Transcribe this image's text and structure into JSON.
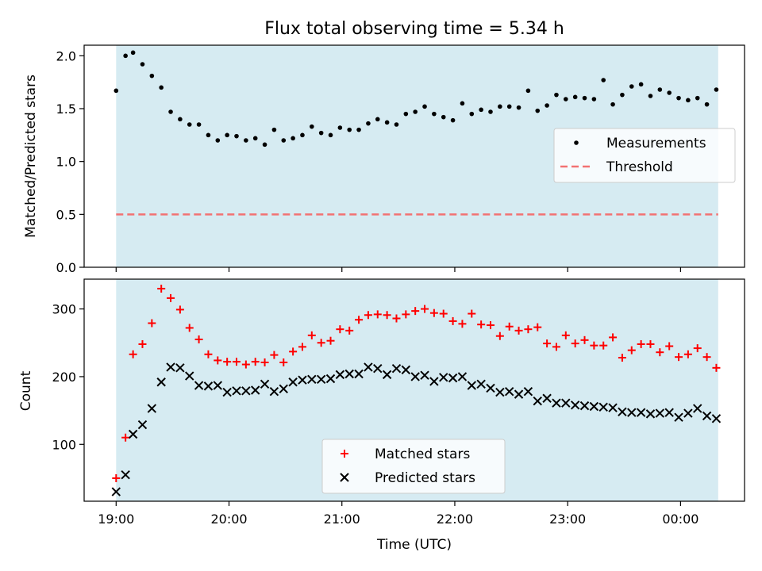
{
  "chart_data": [
    {
      "type": "scatter",
      "title": "Flux total observing time = 5.34 h",
      "ylabel": "Matched/Predicted stars",
      "xlabel": "",
      "xlim": [
        "18:43",
        "00:34"
      ],
      "ylim": [
        0,
        2.1
      ],
      "xticks": [
        "19:00",
        "20:00",
        "21:00",
        "22:00",
        "23:00",
        "00:00"
      ],
      "yticks": [
        "0.0",
        "0.5",
        "1.0",
        "1.5",
        "2.0"
      ],
      "shaded_span": [
        "19:00",
        "00:20"
      ],
      "shade_color": "#add8e6",
      "legend_position": "center-right",
      "series": [
        {
          "name": "Measurements",
          "marker": "dot",
          "color": "#000000",
          "x": [
            "19:00",
            "19:05",
            "19:09",
            "19:14",
            "19:19",
            "19:24",
            "19:29",
            "19:34",
            "19:39",
            "19:44",
            "19:49",
            "19:54",
            "19:59",
            "20:04",
            "20:09",
            "20:14",
            "20:19",
            "20:24",
            "20:29",
            "20:34",
            "20:39",
            "20:44",
            "20:49",
            "20:54",
            "20:59",
            "21:04",
            "21:09",
            "21:14",
            "21:19",
            "21:24",
            "21:29",
            "21:34",
            "21:39",
            "21:44",
            "21:49",
            "21:54",
            "21:59",
            "22:04",
            "22:09",
            "22:14",
            "22:19",
            "22:24",
            "22:29",
            "22:34",
            "22:39",
            "22:44",
            "22:49",
            "22:54",
            "22:59",
            "23:04",
            "23:09",
            "23:14",
            "23:19",
            "23:24",
            "23:29",
            "23:34",
            "23:39",
            "23:44",
            "23:49",
            "23:54",
            "23:59",
            "00:04",
            "00:09",
            "00:14",
            "00:19"
          ],
          "y": [
            1.67,
            2.0,
            2.03,
            1.92,
            1.81,
            1.7,
            1.47,
            1.4,
            1.35,
            1.35,
            1.25,
            1.2,
            1.25,
            1.24,
            1.2,
            1.22,
            1.16,
            1.3,
            1.2,
            1.22,
            1.25,
            1.33,
            1.27,
            1.25,
            1.32,
            1.3,
            1.3,
            1.36,
            1.4,
            1.37,
            1.35,
            1.45,
            1.47,
            1.52,
            1.45,
            1.42,
            1.39,
            1.55,
            1.45,
            1.49,
            1.47,
            1.52,
            1.52,
            1.51,
            1.67,
            1.48,
            1.53,
            1.63,
            1.59,
            1.61,
            1.6,
            1.59,
            1.77,
            1.54,
            1.63,
            1.71,
            1.73,
            1.62,
            1.68,
            1.65,
            1.6,
            1.58,
            1.6,
            1.54,
            1.68
          ]
        },
        {
          "name": "Threshold",
          "marker": "dashed-line",
          "color": "#f27272",
          "value": 0.5
        }
      ]
    },
    {
      "type": "scatter",
      "title": "",
      "ylabel": "Count",
      "xlabel": "Time (UTC)",
      "xlim": [
        "18:43",
        "00:34"
      ],
      "ylim": [
        16,
        344
      ],
      "xticks": [
        "19:00",
        "20:00",
        "21:00",
        "22:00",
        "23:00",
        "00:00"
      ],
      "yticks": [
        "100",
        "200",
        "300"
      ],
      "shaded_span": [
        "19:00",
        "00:20"
      ],
      "shade_color": "#add8e6",
      "legend_position": "lower-center",
      "series": [
        {
          "name": "Matched stars",
          "marker": "plus",
          "color": "#ff0000",
          "x": [
            "19:00",
            "19:05",
            "19:09",
            "19:14",
            "19:19",
            "19:24",
            "19:29",
            "19:34",
            "19:39",
            "19:44",
            "19:49",
            "19:54",
            "19:59",
            "20:04",
            "20:09",
            "20:14",
            "20:19",
            "20:24",
            "20:29",
            "20:34",
            "20:39",
            "20:44",
            "20:49",
            "20:54",
            "20:59",
            "21:04",
            "21:09",
            "21:14",
            "21:19",
            "21:24",
            "21:29",
            "21:34",
            "21:39",
            "21:44",
            "21:49",
            "21:54",
            "21:59",
            "22:04",
            "22:09",
            "22:14",
            "22:19",
            "22:24",
            "22:29",
            "22:34",
            "22:39",
            "22:44",
            "22:49",
            "22:54",
            "22:59",
            "23:04",
            "23:09",
            "23:14",
            "23:19",
            "23:24",
            "23:29",
            "23:34",
            "23:39",
            "23:44",
            "23:49",
            "23:54",
            "23:59",
            "00:04",
            "00:09",
            "00:14",
            "00:19"
          ],
          "y": [
            50,
            110,
            233,
            248,
            279,
            330,
            316,
            299,
            272,
            255,
            233,
            224,
            222,
            222,
            218,
            222,
            221,
            232,
            221,
            237,
            244,
            261,
            250,
            253,
            270,
            268,
            284,
            291,
            292,
            291,
            286,
            292,
            297,
            300,
            294,
            293,
            282,
            278,
            293,
            277,
            276,
            260,
            274,
            268,
            270,
            273,
            249,
            244,
            261,
            249,
            254,
            246,
            246,
            258,
            228,
            239,
            248,
            248,
            236,
            245,
            229,
            233,
            242,
            229,
            213
          ]
        },
        {
          "name": "Predicted stars",
          "marker": "x",
          "color": "#000000",
          "x": [
            "19:00",
            "19:05",
            "19:09",
            "19:14",
            "19:19",
            "19:24",
            "19:29",
            "19:34",
            "19:39",
            "19:44",
            "19:49",
            "19:54",
            "19:59",
            "20:04",
            "20:09",
            "20:14",
            "20:19",
            "20:24",
            "20:29",
            "20:34",
            "20:39",
            "20:44",
            "20:49",
            "20:54",
            "20:59",
            "21:04",
            "21:09",
            "21:14",
            "21:19",
            "21:24",
            "21:29",
            "21:34",
            "21:39",
            "21:44",
            "21:49",
            "21:54",
            "21:59",
            "22:04",
            "22:09",
            "22:14",
            "22:19",
            "22:24",
            "22:29",
            "22:34",
            "22:39",
            "22:44",
            "22:49",
            "22:54",
            "22:59",
            "23:04",
            "23:09",
            "23:14",
            "23:19",
            "23:24",
            "23:29",
            "23:34",
            "23:39",
            "23:44",
            "23:49",
            "23:54",
            "23:59",
            "00:04",
            "00:09",
            "00:14",
            "00:19"
          ],
          "y": [
            30,
            55,
            115,
            129,
            153,
            192,
            214,
            213,
            201,
            187,
            186,
            187,
            177,
            179,
            179,
            180,
            189,
            178,
            182,
            192,
            195,
            196,
            196,
            197,
            203,
            204,
            204,
            214,
            212,
            203,
            212,
            210,
            200,
            202,
            193,
            199,
            198,
            200,
            187,
            189,
            183,
            177,
            178,
            174,
            178,
            164,
            168,
            161,
            161,
            158,
            157,
            156,
            155,
            154,
            148,
            147,
            147,
            145,
            146,
            147,
            140,
            146,
            153,
            142,
            138
          ]
        }
      ]
    }
  ]
}
